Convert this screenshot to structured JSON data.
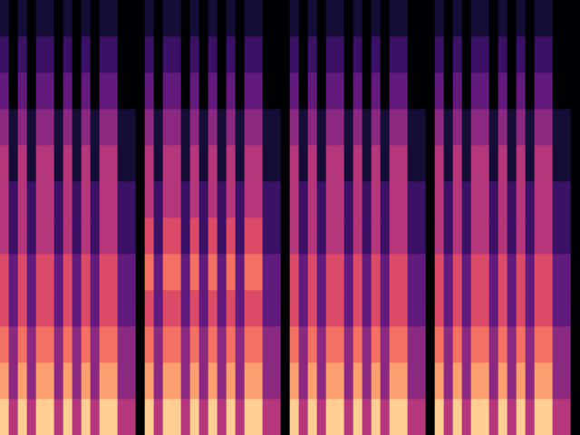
{
  "chart_data": {
    "type": "heatmap",
    "zlim": [
      0,
      10
    ],
    "grid": false,
    "tick_labels": false,
    "cells": [
      [
        1,
        0,
        1,
        0,
        1,
        1,
        0,
        1,
        0,
        1,
        0,
        1,
        1,
        0,
        0,
        0,
        1,
        0,
        1,
        1,
        0,
        1,
        0,
        1,
        0,
        1,
        0,
        1,
        1,
        0,
        0,
        0,
        1,
        0,
        1,
        0,
        1,
        1,
        0,
        1,
        0,
        1,
        0,
        1,
        1,
        0,
        0,
        0,
        1,
        0,
        1,
        0,
        1,
        1,
        0,
        1,
        0,
        1,
        0,
        1,
        1,
        0,
        0,
        0
      ],
      [
        2,
        0,
        2,
        0,
        2,
        2,
        0,
        2,
        0,
        2,
        0,
        2,
        2,
        0,
        0,
        0,
        2,
        0,
        2,
        2,
        0,
        2,
        0,
        2,
        0,
        2,
        0,
        2,
        2,
        0,
        0,
        0,
        2,
        0,
        2,
        0,
        2,
        2,
        0,
        2,
        0,
        2,
        0,
        2,
        2,
        0,
        0,
        0,
        2,
        0,
        2,
        0,
        2,
        2,
        0,
        2,
        0,
        2,
        0,
        2,
        2,
        0,
        0,
        0
      ],
      [
        3,
        0,
        3,
        0,
        3,
        3,
        0,
        3,
        0,
        3,
        0,
        3,
        3,
        0,
        0,
        0,
        3,
        0,
        3,
        3,
        0,
        3,
        0,
        3,
        0,
        3,
        0,
        3,
        3,
        0,
        0,
        0,
        3,
        0,
        3,
        0,
        3,
        3,
        0,
        3,
        0,
        3,
        0,
        3,
        3,
        0,
        0,
        0,
        3,
        0,
        3,
        0,
        3,
        3,
        0,
        3,
        0,
        3,
        0,
        3,
        3,
        0,
        0,
        0
      ],
      [
        4,
        1,
        4,
        1,
        4,
        4,
        1,
        4,
        1,
        4,
        1,
        4,
        4,
        1,
        1,
        0,
        4,
        1,
        4,
        4,
        1,
        4,
        1,
        4,
        1,
        4,
        1,
        4,
        4,
        1,
        1,
        0,
        4,
        1,
        4,
        1,
        4,
        4,
        1,
        4,
        1,
        4,
        1,
        4,
        4,
        1,
        1,
        0,
        4,
        1,
        4,
        1,
        4,
        4,
        1,
        4,
        1,
        4,
        1,
        4,
        4,
        1,
        1,
        0
      ],
      [
        5,
        1,
        5,
        1,
        5,
        5,
        1,
        5,
        1,
        5,
        1,
        5,
        5,
        1,
        1,
        0,
        5,
        1,
        5,
        5,
        1,
        5,
        1,
        5,
        1,
        5,
        1,
        5,
        5,
        1,
        1,
        0,
        5,
        1,
        5,
        1,
        5,
        5,
        1,
        5,
        1,
        5,
        1,
        5,
        5,
        1,
        1,
        0,
        5,
        1,
        5,
        1,
        5,
        5,
        1,
        5,
        1,
        5,
        1,
        5,
        5,
        1,
        1,
        0
      ],
      [
        5,
        2,
        5,
        2,
        5,
        5,
        2,
        5,
        2,
        5,
        2,
        5,
        5,
        2,
        2,
        0,
        5,
        2,
        5,
        5,
        2,
        5,
        2,
        5,
        2,
        5,
        2,
        5,
        5,
        2,
        2,
        0,
        5,
        2,
        5,
        2,
        5,
        5,
        2,
        5,
        2,
        5,
        2,
        5,
        5,
        2,
        2,
        0,
        5,
        2,
        5,
        2,
        5,
        5,
        2,
        5,
        2,
        5,
        2,
        5,
        5,
        2,
        2,
        0
      ],
      [
        5,
        2,
        5,
        2,
        5,
        5,
        2,
        5,
        2,
        5,
        2,
        5,
        5,
        2,
        2,
        0,
        6,
        2,
        6,
        6,
        2,
        6,
        2,
        6,
        2,
        6,
        2,
        6,
        6,
        2,
        2,
        0,
        5,
        2,
        5,
        2,
        5,
        5,
        2,
        5,
        2,
        5,
        2,
        5,
        5,
        2,
        2,
        0,
        5,
        2,
        5,
        2,
        5,
        5,
        2,
        5,
        2,
        5,
        2,
        5,
        5,
        2,
        2,
        0
      ],
      [
        6,
        3,
        6,
        3,
        6,
        6,
        3,
        6,
        3,
        6,
        3,
        6,
        6,
        3,
        3,
        0,
        7,
        3,
        7,
        7,
        3,
        7,
        3,
        7,
        3,
        7,
        3,
        7,
        7,
        3,
        3,
        0,
        6,
        3,
        6,
        3,
        6,
        6,
        3,
        6,
        3,
        6,
        3,
        6,
        6,
        3,
        3,
        0,
        6,
        3,
        6,
        3,
        6,
        6,
        3,
        6,
        3,
        6,
        3,
        6,
        6,
        3,
        3,
        0
      ],
      [
        6,
        3,
        6,
        3,
        6,
        6,
        3,
        6,
        3,
        6,
        3,
        6,
        6,
        3,
        3,
        0,
        6,
        3,
        6,
        6,
        3,
        6,
        3,
        6,
        3,
        6,
        3,
        6,
        6,
        3,
        3,
        0,
        6,
        3,
        6,
        3,
        6,
        6,
        3,
        6,
        3,
        6,
        3,
        6,
        6,
        3,
        3,
        0,
        6,
        3,
        6,
        3,
        6,
        6,
        3,
        6,
        3,
        6,
        3,
        6,
        6,
        3,
        3,
        0
      ],
      [
        7,
        4,
        7,
        4,
        7,
        7,
        4,
        7,
        4,
        7,
        4,
        7,
        7,
        4,
        4,
        0,
        7,
        4,
        7,
        7,
        4,
        7,
        4,
        7,
        4,
        7,
        4,
        7,
        7,
        4,
        4,
        0,
        7,
        4,
        7,
        4,
        7,
        7,
        4,
        7,
        4,
        7,
        4,
        7,
        7,
        4,
        4,
        0,
        7,
        4,
        7,
        4,
        7,
        7,
        4,
        7,
        4,
        7,
        4,
        7,
        7,
        4,
        4,
        0
      ],
      [
        8,
        4,
        8,
        4,
        8,
        8,
        4,
        8,
        4,
        8,
        4,
        8,
        8,
        4,
        4,
        0,
        8,
        4,
        8,
        8,
        4,
        8,
        4,
        8,
        4,
        8,
        4,
        8,
        8,
        4,
        4,
        0,
        8,
        4,
        8,
        4,
        8,
        8,
        4,
        8,
        4,
        8,
        4,
        8,
        8,
        4,
        4,
        0,
        8,
        4,
        8,
        4,
        8,
        8,
        4,
        8,
        4,
        8,
        4,
        8,
        8,
        4,
        4,
        0
      ],
      [
        9,
        5,
        9,
        5,
        9,
        9,
        5,
        9,
        5,
        9,
        5,
        9,
        9,
        5,
        5,
        0,
        9,
        5,
        9,
        9,
        5,
        9,
        5,
        9,
        5,
        9,
        5,
        9,
        9,
        5,
        5,
        0,
        9,
        5,
        9,
        5,
        9,
        9,
        5,
        9,
        5,
        9,
        5,
        9,
        9,
        5,
        5,
        0,
        9,
        5,
        9,
        5,
        9,
        9,
        5,
        9,
        5,
        9,
        5,
        9,
        9,
        5,
        5,
        0
      ]
    ]
  }
}
